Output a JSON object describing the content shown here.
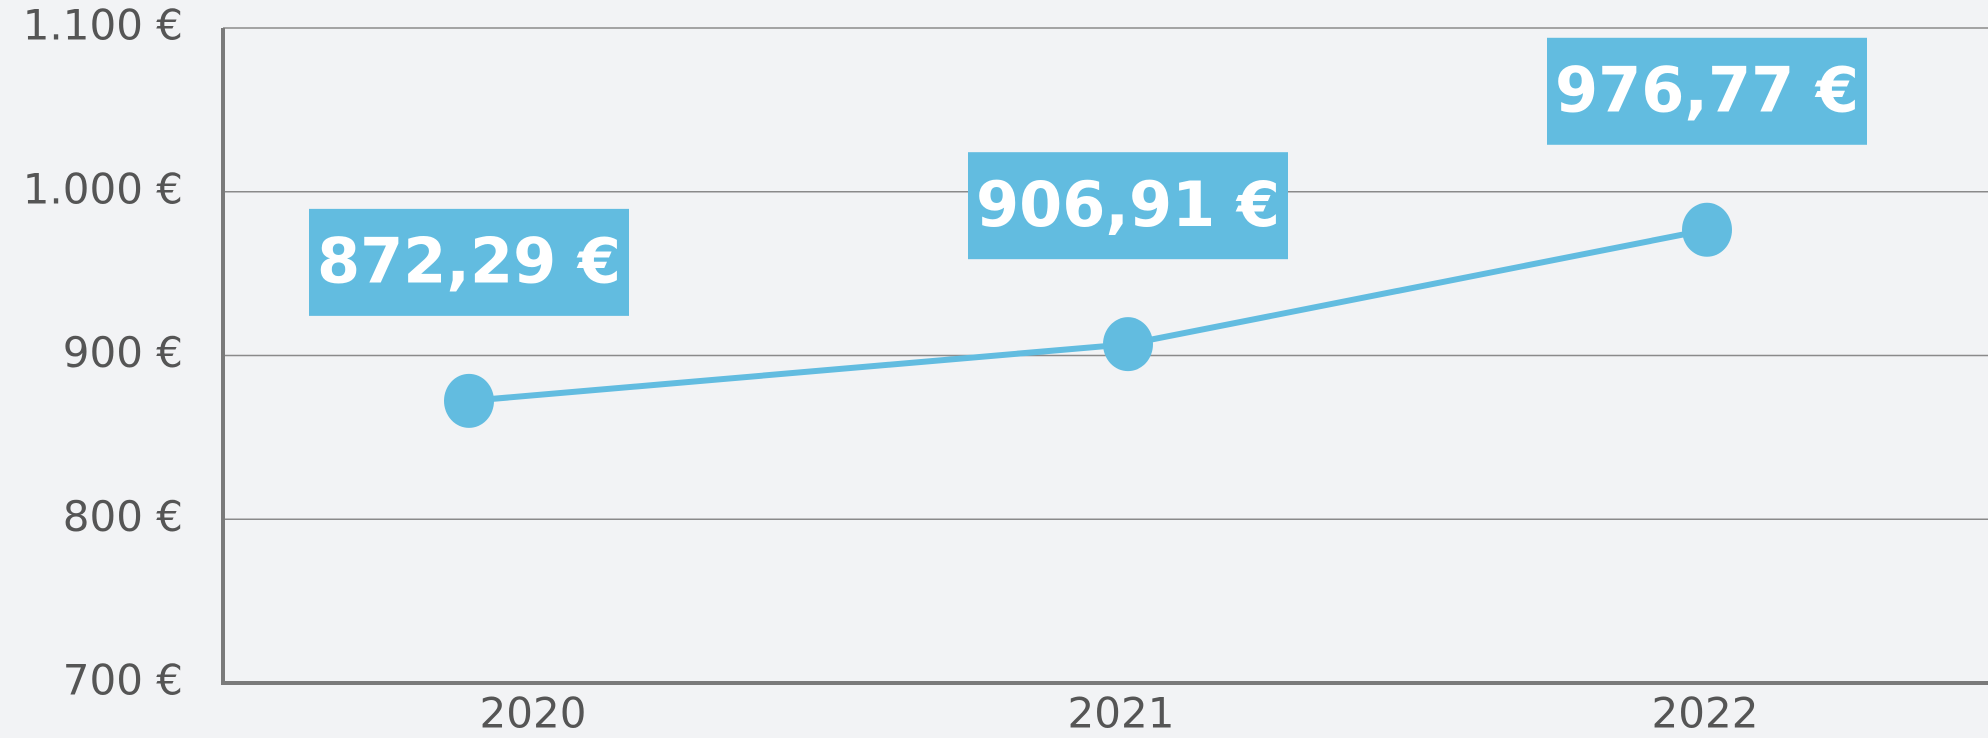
{
  "chart_data": {
    "type": "line",
    "categories": [
      "2020",
      "2021",
      "2022"
    ],
    "series": [
      {
        "color": "#62bce0",
        "values": [
          872.29,
          906.91,
          976.77
        ],
        "value_labels": [
          "872,29 €",
          "906,91 €",
          "976,77 €"
        ]
      }
    ],
    "ylim": [
      700,
      1100
    ],
    "yticks": [
      {
        "value": 700,
        "label": "700 €"
      },
      {
        "value": 800,
        "label": "800 €"
      },
      {
        "value": 900,
        "label": "900 €"
      },
      {
        "value": 1000,
        "label": "1.000 €"
      },
      {
        "value": 1100,
        "label": "1.100 €"
      }
    ],
    "grid": true
  }
}
